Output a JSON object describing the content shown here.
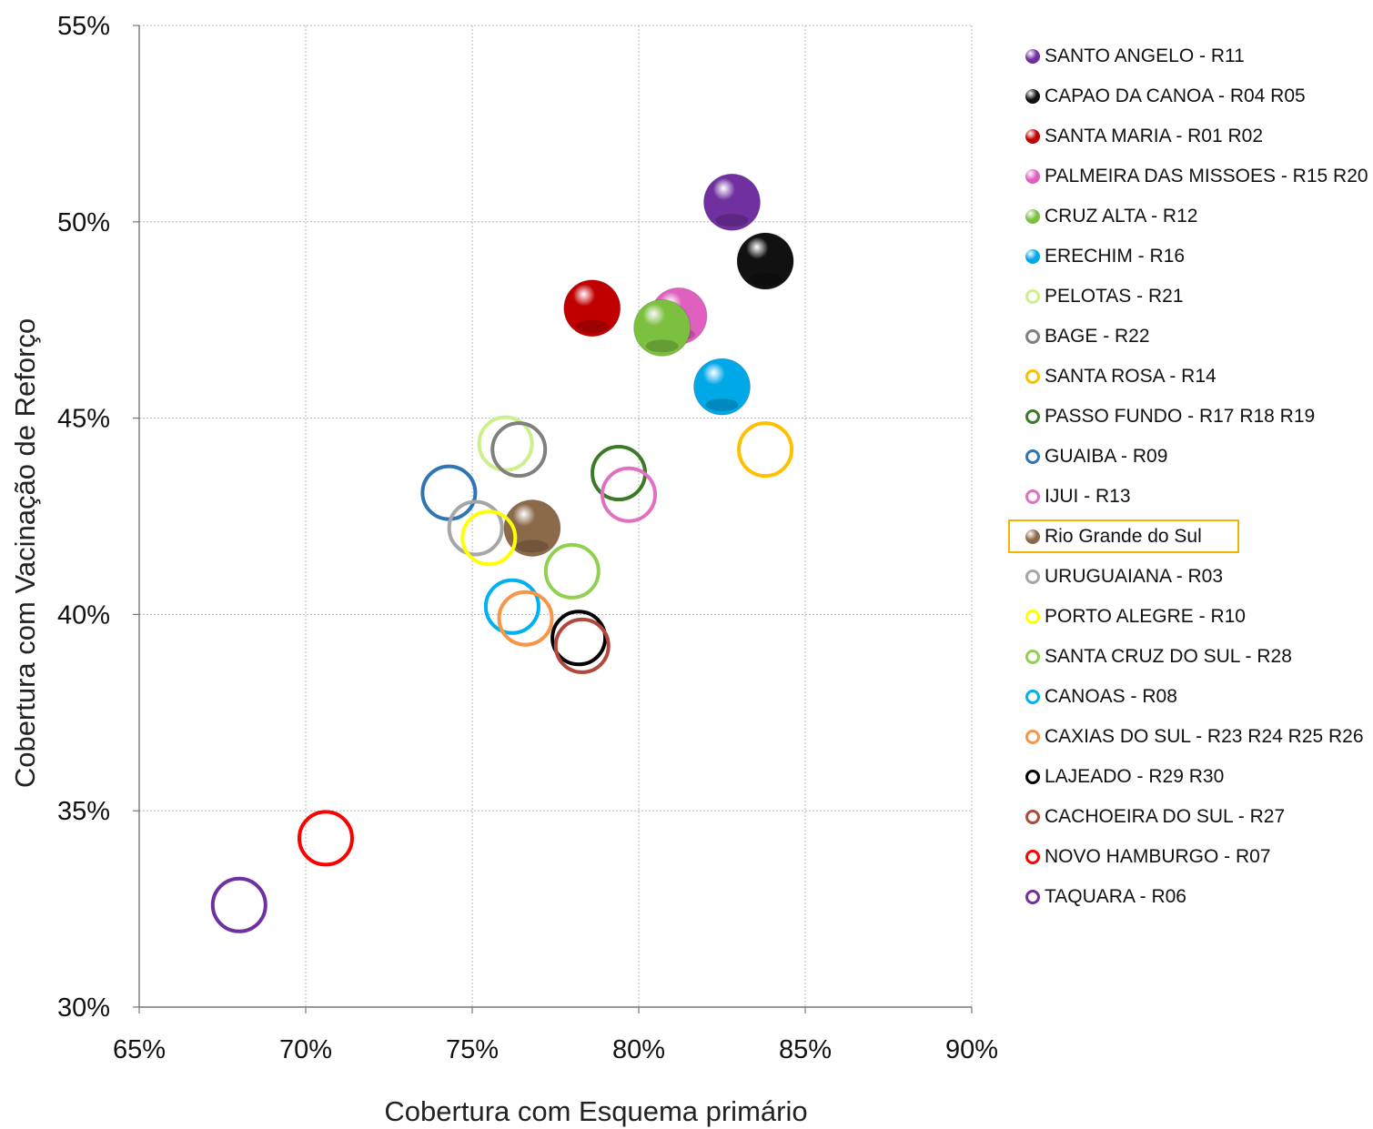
{
  "chart_data": {
    "type": "scatter",
    "xlabel": "Cobertura com Esquema primário",
    "ylabel": "Cobertura com Vacinação de Reforço",
    "xlim": [
      65,
      90
    ],
    "ylim": [
      30,
      55
    ],
    "x_ticks": [
      "65%",
      "70%",
      "75%",
      "80%",
      "85%",
      "90%"
    ],
    "y_ticks": [
      "30%",
      "35%",
      "40%",
      "45%",
      "50%",
      "55%"
    ],
    "grid": true,
    "legend_position": "right",
    "series": [
      {
        "name": "SANTO ANGELO - R11",
        "x": 82.8,
        "y": 50.5,
        "color": "#7030a0",
        "style": "filled"
      },
      {
        "name": "CAPAO DA CANOA - R04 R05",
        "x": 83.8,
        "y": 49.0,
        "color": "#111111",
        "style": "filled"
      },
      {
        "name": "SANTA MARIA - R01 R02",
        "x": 78.6,
        "y": 47.8,
        "color": "#c00000",
        "style": "filled"
      },
      {
        "name": "PALMEIRA DAS MISSOES - R15 R20",
        "x": 81.2,
        "y": 47.6,
        "color": "#e060c0",
        "style": "filled"
      },
      {
        "name": "CRUZ ALTA - R12",
        "x": 80.7,
        "y": 47.3,
        "color": "#7cc040",
        "style": "filled"
      },
      {
        "name": "ERECHIM - R16",
        "x": 82.5,
        "y": 45.8,
        "color": "#00a8e8",
        "style": "filled"
      },
      {
        "name": "PELOTAS - R21",
        "x": 76.0,
        "y": 44.35,
        "color": "#ccf08a",
        "style": "open"
      },
      {
        "name": "BAGE - R22",
        "x": 76.4,
        "y": 44.2,
        "color": "#7f7f7f",
        "style": "open"
      },
      {
        "name": "SANTA ROSA - R14",
        "x": 83.8,
        "y": 44.2,
        "color": "#ffc000",
        "style": "open"
      },
      {
        "name": "PASSO FUNDO - R17 R18 R19",
        "x": 79.4,
        "y": 43.6,
        "color": "#3c7a28",
        "style": "open"
      },
      {
        "name": "GUAIBA - R09",
        "x": 74.3,
        "y": 43.1,
        "color": "#2e75b6",
        "style": "open"
      },
      {
        "name": "IJUI - R13",
        "x": 79.7,
        "y": 43.05,
        "color": "#e070c0",
        "style": "open"
      },
      {
        "name": "Rio Grande do Sul",
        "x": 76.8,
        "y": 42.2,
        "color": "#8b6a4a",
        "style": "filled"
      },
      {
        "name": "URUGUAIANA - R03",
        "x": 75.1,
        "y": 42.2,
        "color": "#a6a6a6",
        "style": "open"
      },
      {
        "name": "PORTO ALEGRE - R10",
        "x": 75.5,
        "y": 41.95,
        "color": "#ffff00",
        "style": "open"
      },
      {
        "name": "SANTA CRUZ DO SUL - R28",
        "x": 78.0,
        "y": 41.1,
        "color": "#92d050",
        "style": "open"
      },
      {
        "name": "CANOAS - R08",
        "x": 76.2,
        "y": 40.2,
        "color": "#00b0f0",
        "style": "open"
      },
      {
        "name": "CAXIAS DO SUL - R23 R24 R25 R26",
        "x": 76.6,
        "y": 39.9,
        "color": "#f79646",
        "style": "open"
      },
      {
        "name": "LAJEADO - R29 R30",
        "x": 78.2,
        "y": 39.4,
        "color": "#000000",
        "style": "open"
      },
      {
        "name": "CACHOEIRA DO SUL - R27",
        "x": 78.3,
        "y": 39.2,
        "color": "#b0483c",
        "style": "open"
      },
      {
        "name": "NOVO HAMBURGO - R07",
        "x": 70.6,
        "y": 34.3,
        "color": "#ff0000",
        "style": "open"
      },
      {
        "name": "TAQUARA - R06",
        "x": 68.0,
        "y": 32.6,
        "color": "#7030a0",
        "style": "open"
      }
    ],
    "highlighted_legend_entry": "Rio Grande do Sul",
    "highlight_color": "#f5b400"
  }
}
